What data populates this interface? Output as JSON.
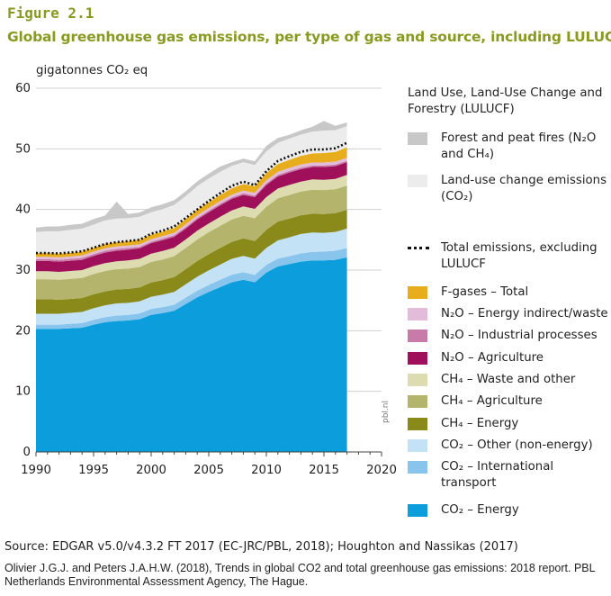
{
  "figure_label": "Figure 2.1",
  "title": "Global greenhouse gas emissions, per type of gas and source, including LULUCF",
  "source": "Source: EDGAR v5.0/v4.3.2 FT 2017 (EC-JRC/PBL, 2018); Houghton and Nassikas (2017)",
  "citation": "Olivier J.G.J. and Peters J.A.H.W. (2018), Trends in global CO2 and total greenhouse gas emissions: 2018 report. PBL Netherlands Environmental Assessment Agency, The Hague.",
  "watermark": "pbl.nl",
  "legend": {
    "group_title": "Land Use, Land-Use Change and Forestry (LULUCF)",
    "items": [
      {
        "key": "fires",
        "label": "Forest and peat fires (N₂O and CH₄)",
        "color": "#c8c8c8"
      },
      {
        "key": "luc",
        "label": "Land-use change emissions (CO₂)",
        "color": "#ececec"
      },
      {
        "key": "total_excl",
        "label": "Total emissions, excluding LULUCF",
        "color": "#111111",
        "style": "dotted"
      },
      {
        "key": "fgas",
        "label": "F-gases – Total",
        "color": "#e8ad1c"
      },
      {
        "key": "n2o_ind",
        "label": "N₂O – Energy indirect/waste",
        "color": "#e2bcd8"
      },
      {
        "key": "n2o_proc",
        "label": "N₂O – Industrial processes",
        "color": "#c87aa8"
      },
      {
        "key": "n2o_agri",
        "label": "N₂O – Agriculture",
        "color": "#a0105a"
      },
      {
        "key": "ch4_waste",
        "label": "CH₄ – Waste and other",
        "color": "#dcdcb0"
      },
      {
        "key": "ch4_agri",
        "label": "CH₄ – Agriculture",
        "color": "#b4b46c"
      },
      {
        "key": "ch4_energy",
        "label": "CH₄ – Energy",
        "color": "#8a8a1a"
      },
      {
        "key": "co2_other",
        "label": "CO₂ – Other (non-energy)",
        "color": "#c4e2f6"
      },
      {
        "key": "co2_intl",
        "label": "CO₂ – International transport",
        "color": "#88c4ec"
      },
      {
        "key": "co2_energy",
        "label": "CO₂ – Energy",
        "color": "#0c9ddc"
      }
    ]
  },
  "chart_data": {
    "type": "area",
    "stacked": true,
    "ylabel": "gigatonnes CO₂ eq",
    "ylim": [
      0,
      60
    ],
    "xlim": [
      1990,
      2020
    ],
    "yticks": [
      0,
      10,
      20,
      30,
      40,
      50,
      60
    ],
    "xticks": [
      1990,
      1995,
      2000,
      2005,
      2010,
      2015,
      2020
    ],
    "grid": true,
    "x": [
      1990,
      1991,
      1992,
      1993,
      1994,
      1995,
      1996,
      1997,
      1998,
      1999,
      2000,
      2001,
      2002,
      2003,
      2004,
      2005,
      2006,
      2007,
      2008,
      2009,
      2010,
      2011,
      2012,
      2013,
      2014,
      2015,
      2016,
      2017
    ],
    "series": [
      {
        "key": "co2_energy",
        "name": "CO₂ – Energy",
        "values": [
          20.3,
          20.3,
          20.3,
          20.4,
          20.5,
          21.0,
          21.4,
          21.6,
          21.7,
          21.9,
          22.6,
          22.9,
          23.3,
          24.4,
          25.5,
          26.4,
          27.2,
          28.0,
          28.4,
          28.0,
          29.6,
          30.6,
          31.0,
          31.4,
          31.6,
          31.6,
          31.7,
          32.1
        ]
      },
      {
        "key": "co2_intl",
        "name": "CO₂ – International transport",
        "values": [
          0.7,
          0.7,
          0.7,
          0.75,
          0.75,
          0.8,
          0.85,
          0.9,
          0.9,
          0.95,
          1.0,
          1.0,
          1.0,
          1.05,
          1.1,
          1.15,
          1.2,
          1.25,
          1.25,
          1.2,
          1.25,
          1.3,
          1.3,
          1.35,
          1.4,
          1.45,
          1.5,
          1.55
        ]
      },
      {
        "key": "co2_other",
        "name": "CO₂ – Other (non-energy)",
        "values": [
          1.8,
          1.8,
          1.8,
          1.8,
          1.85,
          1.9,
          1.95,
          2.0,
          2.0,
          2.0,
          2.0,
          2.05,
          2.1,
          2.2,
          2.3,
          2.4,
          2.5,
          2.6,
          2.7,
          2.7,
          2.8,
          3.0,
          3.1,
          3.2,
          3.2,
          3.1,
          3.1,
          3.2
        ]
      },
      {
        "key": "ch4_energy",
        "name": "CH₄ – Energy",
        "values": [
          2.4,
          2.4,
          2.3,
          2.3,
          2.3,
          2.3,
          2.3,
          2.3,
          2.3,
          2.3,
          2.35,
          2.4,
          2.45,
          2.5,
          2.6,
          2.7,
          2.75,
          2.8,
          2.9,
          2.9,
          3.0,
          3.1,
          3.1,
          3.1,
          3.1,
          3.1,
          3.1,
          3.1
        ]
      },
      {
        "key": "ch4_agri",
        "name": "CH₄ – Agriculture",
        "values": [
          3.3,
          3.3,
          3.3,
          3.3,
          3.3,
          3.35,
          3.35,
          3.35,
          3.35,
          3.35,
          3.4,
          3.4,
          3.45,
          3.5,
          3.55,
          3.6,
          3.65,
          3.7,
          3.7,
          3.75,
          3.8,
          3.85,
          3.9,
          3.9,
          3.95,
          3.95,
          3.95,
          4.0
        ]
      },
      {
        "key": "ch4_waste",
        "name": "CH₄ – Waste and other",
        "values": [
          1.3,
          1.3,
          1.3,
          1.3,
          1.3,
          1.3,
          1.3,
          1.3,
          1.35,
          1.35,
          1.35,
          1.4,
          1.4,
          1.4,
          1.45,
          1.45,
          1.5,
          1.5,
          1.55,
          1.55,
          1.6,
          1.6,
          1.65,
          1.65,
          1.7,
          1.7,
          1.7,
          1.75
        ]
      },
      {
        "key": "n2o_agri",
        "name": "N₂O – Agriculture",
        "values": [
          1.7,
          1.7,
          1.7,
          1.7,
          1.7,
          1.7,
          1.75,
          1.75,
          1.75,
          1.75,
          1.75,
          1.8,
          1.8,
          1.8,
          1.85,
          1.85,
          1.9,
          1.9,
          1.9,
          1.95,
          2.0,
          2.0,
          2.05,
          2.05,
          2.05,
          2.1,
          2.1,
          2.1
        ]
      },
      {
        "key": "n2o_proc",
        "name": "N₂O – Industrial processes",
        "values": [
          0.3,
          0.3,
          0.3,
          0.3,
          0.3,
          0.3,
          0.3,
          0.3,
          0.3,
          0.25,
          0.25,
          0.25,
          0.25,
          0.25,
          0.25,
          0.25,
          0.25,
          0.25,
          0.25,
          0.25,
          0.25,
          0.25,
          0.25,
          0.25,
          0.25,
          0.25,
          0.25,
          0.25
        ]
      },
      {
        "key": "n2o_ind",
        "name": "N₂O – Energy indirect/waste",
        "values": [
          0.4,
          0.4,
          0.4,
          0.4,
          0.4,
          0.4,
          0.4,
          0.4,
          0.4,
          0.4,
          0.4,
          0.4,
          0.4,
          0.45,
          0.45,
          0.45,
          0.45,
          0.45,
          0.45,
          0.45,
          0.5,
          0.5,
          0.5,
          0.5,
          0.5,
          0.5,
          0.5,
          0.5
        ]
      },
      {
        "key": "fgas",
        "name": "F-gases – Total",
        "values": [
          0.6,
          0.6,
          0.6,
          0.6,
          0.65,
          0.65,
          0.7,
          0.7,
          0.7,
          0.75,
          0.75,
          0.75,
          0.8,
          0.85,
          0.9,
          0.95,
          1.0,
          1.05,
          1.1,
          1.1,
          1.2,
          1.3,
          1.35,
          1.45,
          1.5,
          1.55,
          1.6,
          1.7
        ]
      },
      {
        "key": "luc",
        "name": "Land-use change emissions (CO₂)",
        "values": [
          3.5,
          3.6,
          3.7,
          3.8,
          3.8,
          3.8,
          3.9,
          3.9,
          3.8,
          3.8,
          3.7,
          3.7,
          3.8,
          3.8,
          3.9,
          3.9,
          3.8,
          3.7,
          3.6,
          3.5,
          3.6,
          3.5,
          3.5,
          3.5,
          3.6,
          3.7,
          3.6,
          3.5
        ]
      },
      {
        "key": "fires",
        "name": "Forest and peat fires (N₂O and CH₄)",
        "values": [
          0.7,
          0.8,
          0.8,
          0.8,
          0.8,
          0.9,
          0.8,
          2.8,
          0.7,
          0.7,
          0.8,
          0.8,
          0.8,
          0.8,
          0.8,
          0.8,
          0.9,
          0.6,
          0.6,
          0.6,
          0.9,
          0.8,
          0.6,
          0.7,
          0.8,
          1.6,
          0.7,
          0.6
        ]
      }
    ],
    "total_excluding_lulucf": {
      "name": "Total emissions, excluding LULUCF",
      "values": [
        32.8,
        32.8,
        32.75,
        32.9,
        33.1,
        33.7,
        34.3,
        34.6,
        34.8,
        35.0,
        36.0,
        36.5,
        37.2,
        38.6,
        40.0,
        41.4,
        42.7,
        43.9,
        44.6,
        44.0,
        46.3,
        48.0,
        48.8,
        49.5,
        49.9,
        49.9,
        50.1,
        51.0
      ]
    }
  }
}
